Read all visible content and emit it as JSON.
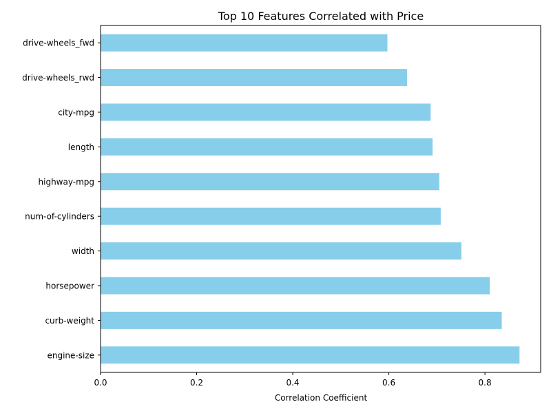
{
  "chart_data": {
    "type": "bar",
    "orientation": "horizontal",
    "title": "Top 10 Features Correlated with Price",
    "xlabel": "Correlation Coefficient",
    "ylabel": "",
    "xlim": [
      0,
      0.916
    ],
    "x_ticks": [
      "0.0",
      "0.2",
      "0.4",
      "0.6",
      "0.8"
    ],
    "x_tick_values": [
      0.0,
      0.2,
      0.4,
      0.6,
      0.8
    ],
    "categories": [
      "drive-wheels_fwd",
      "drive-wheels_rwd",
      "city-mpg",
      "length",
      "highway-mpg",
      "num-of-cylinders",
      "width",
      "horsepower",
      "curb-weight",
      "engine-size"
    ],
    "values": [
      0.597,
      0.638,
      0.687,
      0.691,
      0.705,
      0.708,
      0.751,
      0.81,
      0.835,
      0.872
    ],
    "bar_color": "#87ceeb",
    "grid": false,
    "legend": "none"
  }
}
